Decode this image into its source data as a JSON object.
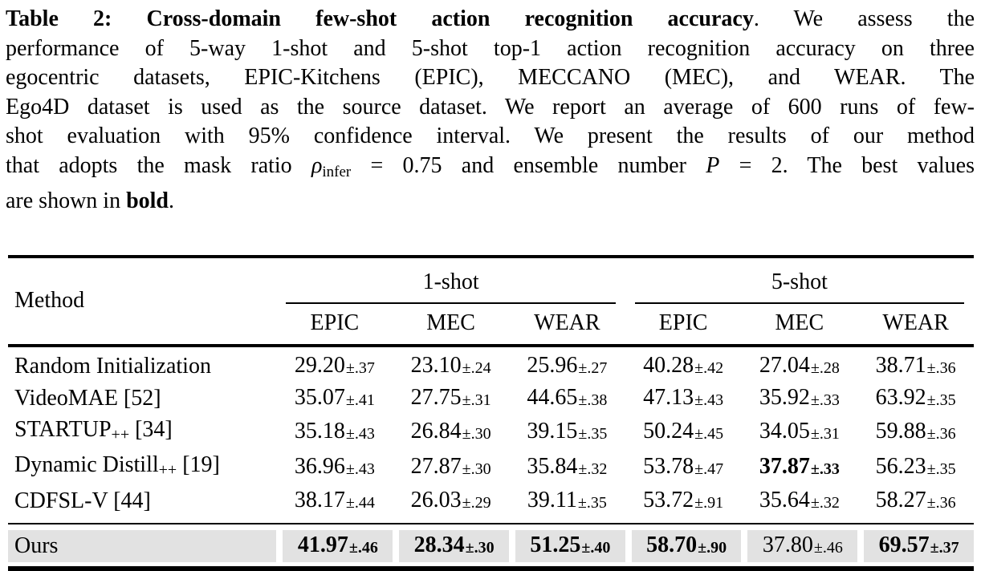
{
  "caption": {
    "lines": [
      [
        {
          "s": "b",
          "t": "Table 2: Cross-domain few-shot action recognition accuracy"
        },
        {
          "s": "r",
          "t": ". We assess the"
        }
      ],
      [
        {
          "s": "r",
          "t": "performance of 5-way 1-shot and 5-shot top-1 action recognition accuracy on three"
        }
      ],
      [
        {
          "s": "r",
          "t": "egocentric datasets, EPIC-Kitchens (EPIC), MECCANO (MEC), and WEAR. The"
        }
      ],
      [
        {
          "s": "r",
          "t": "Ego4D dataset is used as the source dataset. We report an average of 600 runs of few-"
        }
      ],
      [
        {
          "s": "r",
          "t": "shot evaluation with 95% confidence interval. We present the results of our method"
        }
      ],
      [
        {
          "s": "r",
          "t": "that adopts the mask ratio "
        },
        {
          "s": "i",
          "t": "ρ"
        },
        {
          "s": "sub",
          "t": "infer"
        },
        {
          "s": "r",
          "t": " = 0.75 and ensemble number "
        },
        {
          "s": "i",
          "t": "P"
        },
        {
          "s": "r",
          "t": " = 2. The best values"
        }
      ],
      [
        {
          "s": "r",
          "t": "are shown in "
        },
        {
          "s": "b",
          "t": "bold"
        },
        {
          "s": "r",
          "t": "."
        }
      ]
    ]
  },
  "table": {
    "method_header": "Method",
    "groups": [
      {
        "label": "1-shot",
        "columns": [
          "EPIC",
          "MEC",
          "WEAR"
        ]
      },
      {
        "label": "5-shot",
        "columns": [
          "EPIC",
          "MEC",
          "WEAR"
        ]
      }
    ],
    "highlight_color": "#e2e2e2",
    "rows": [
      {
        "method": {
          "name": "Random Initialization",
          "sub": "",
          "ref": ""
        },
        "highlight": false,
        "cells": [
          {
            "v": "29.20",
            "pm": "±.37",
            "bold": false
          },
          {
            "v": "23.10",
            "pm": "±.24",
            "bold": false
          },
          {
            "v": "25.96",
            "pm": "±.27",
            "bold": false
          },
          {
            "v": "40.28",
            "pm": "±.42",
            "bold": false
          },
          {
            "v": "27.04",
            "pm": "±.28",
            "bold": false
          },
          {
            "v": "38.71",
            "pm": "±.36",
            "bold": false
          }
        ]
      },
      {
        "method": {
          "name": "VideoMAE",
          "sub": "",
          "ref": "[52]"
        },
        "highlight": false,
        "cells": [
          {
            "v": "35.07",
            "pm": "±.41",
            "bold": false
          },
          {
            "v": "27.75",
            "pm": "±.31",
            "bold": false
          },
          {
            "v": "44.65",
            "pm": "±.38",
            "bold": false
          },
          {
            "v": "47.13",
            "pm": "±.43",
            "bold": false
          },
          {
            "v": "35.92",
            "pm": "±.33",
            "bold": false
          },
          {
            "v": "63.92",
            "pm": "±.35",
            "bold": false
          }
        ]
      },
      {
        "method": {
          "name": "STARTUP",
          "sub": "++",
          "ref": "[34]"
        },
        "highlight": false,
        "cells": [
          {
            "v": "35.18",
            "pm": "±.43",
            "bold": false
          },
          {
            "v": "26.84",
            "pm": "±.30",
            "bold": false
          },
          {
            "v": "39.15",
            "pm": "±.35",
            "bold": false
          },
          {
            "v": "50.24",
            "pm": "±.45",
            "bold": false
          },
          {
            "v": "34.05",
            "pm": "±.31",
            "bold": false
          },
          {
            "v": "59.88",
            "pm": "±.36",
            "bold": false
          }
        ]
      },
      {
        "method": {
          "name": "Dynamic Distill",
          "sub": "++",
          "ref": "[19]"
        },
        "highlight": false,
        "cells": [
          {
            "v": "36.96",
            "pm": "±.43",
            "bold": false
          },
          {
            "v": "27.87",
            "pm": "±.30",
            "bold": false
          },
          {
            "v": "35.84",
            "pm": "±.32",
            "bold": false
          },
          {
            "v": "53.78",
            "pm": "±.47",
            "bold": false
          },
          {
            "v": "37.87",
            "pm": "±.33",
            "bold": true
          },
          {
            "v": "56.23",
            "pm": "±.35",
            "bold": false
          }
        ]
      },
      {
        "method": {
          "name": "CDFSL-V",
          "sub": "",
          "ref": "[44]"
        },
        "highlight": false,
        "cells": [
          {
            "v": "38.17",
            "pm": "±.44",
            "bold": false
          },
          {
            "v": "26.03",
            "pm": "±.29",
            "bold": false
          },
          {
            "v": "39.11",
            "pm": "±.35",
            "bold": false
          },
          {
            "v": "53.72",
            "pm": "±.91",
            "bold": false
          },
          {
            "v": "35.64",
            "pm": "±.32",
            "bold": false
          },
          {
            "v": "58.27",
            "pm": "±.36",
            "bold": false
          }
        ]
      },
      {
        "method": {
          "name": "Ours",
          "sub": "",
          "ref": ""
        },
        "highlight": true,
        "cells": [
          {
            "v": "41.97",
            "pm": "±.46",
            "bold": true
          },
          {
            "v": "28.34",
            "pm": "±.30",
            "bold": true
          },
          {
            "v": "51.25",
            "pm": "±.40",
            "bold": true
          },
          {
            "v": "58.70",
            "pm": "±.90",
            "bold": true
          },
          {
            "v": "37.80",
            "pm": "±.46",
            "bold": false
          },
          {
            "v": "69.57",
            "pm": "±.37",
            "bold": true
          }
        ]
      }
    ]
  }
}
